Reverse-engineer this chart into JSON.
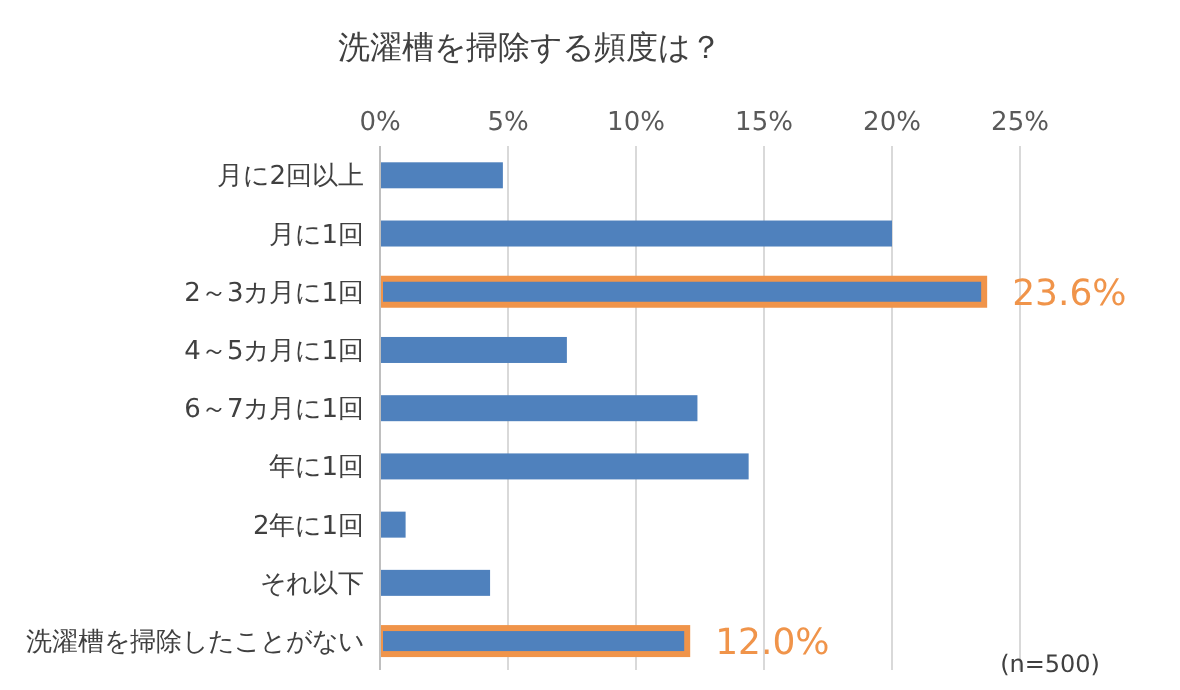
{
  "chart_data": {
    "type": "bar",
    "orientation": "horizontal",
    "title": "洗濯槽を掃除する頻度は？",
    "categories": [
      "月に2回以上",
      "月に1回",
      "2～3カ月に1回",
      "4～5カ月に1回",
      "6～7カ月に1回",
      "年に1回",
      "2年に1回",
      "それ以下",
      "洗濯槽を掃除したことがない"
    ],
    "values": [
      4.8,
      20.0,
      23.6,
      7.3,
      12.4,
      14.4,
      1.0,
      4.3,
      12.0
    ],
    "value_labels": [
      null,
      null,
      "23.6%",
      null,
      null,
      null,
      null,
      null,
      "12.0%"
    ],
    "color": "#4f81bd",
    "xlim": [
      0,
      25
    ],
    "xticks": [
      {
        "value": 0,
        "label": "0%"
      },
      {
        "value": 5,
        "label": "5%"
      },
      {
        "value": 10,
        "label": "10%"
      },
      {
        "value": 15,
        "label": "15%"
      },
      {
        "value": 20,
        "label": "20%"
      },
      {
        "value": 25,
        "label": "25%"
      }
    ],
    "grid": "x",
    "annotations": [
      "(n=500)"
    ]
  }
}
